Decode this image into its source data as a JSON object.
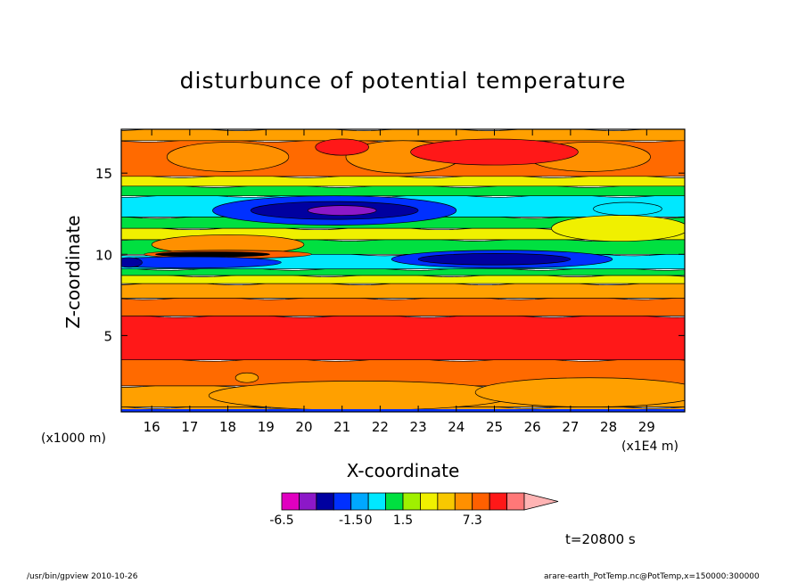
{
  "chart_data": {
    "type": "heatmap",
    "title": "disturbunce of potential temperature",
    "xlabel": "X-coordinate",
    "ylabel": "Z-coordinate",
    "x_unit_left": "(x1000 m)",
    "x_unit_right": "(x1E4 m)",
    "x_ticks": [
      16,
      17,
      18,
      19,
      20,
      21,
      22,
      23,
      24,
      25,
      26,
      27,
      28,
      29
    ],
    "y_ticks": [
      5,
      10,
      15
    ],
    "xlim": [
      15.2,
      30.0
    ],
    "ylim": [
      0.3,
      17.7
    ],
    "colorbar": {
      "labels": [
        "-6.5",
        "-1.5",
        "0",
        "1.5",
        "7.3"
      ],
      "colors": [
        "#e000c0",
        "#8c18c8",
        "#0000a0",
        "#0030ff",
        "#00a8ff",
        "#00e8ff",
        "#00e040",
        "#a0f000",
        "#f0f000",
        "#f8c800",
        "#ff9000",
        "#ff6000",
        "#ff1818",
        "#ff7878",
        "#ffb4b4"
      ]
    },
    "bands": [
      {
        "z": [
          0.3,
          0.6
        ],
        "color": "#ffa000"
      },
      {
        "z": [
          0.6,
          1.9
        ],
        "color": "#ffa000"
      },
      {
        "z": [
          1.9,
          3.5
        ],
        "color": "#ff6a00"
      },
      {
        "z": [
          3.5,
          6.2
        ],
        "color": "#ff1818"
      },
      {
        "z": [
          6.2,
          7.3
        ],
        "color": "#ff6a00"
      },
      {
        "z": [
          7.3,
          8.2
        ],
        "color": "#ffa000"
      },
      {
        "z": [
          8.2,
          8.7
        ],
        "color": "#f0f000"
      },
      {
        "z": [
          8.7,
          9.1
        ],
        "color": "#00e040"
      },
      {
        "z": [
          9.1,
          10.0
        ],
        "color": "#00e8ff"
      },
      {
        "z": [
          10.0,
          10.9
        ],
        "color": "#00e040"
      },
      {
        "z": [
          10.9,
          11.6
        ],
        "color": "#f0f000"
      },
      {
        "z": [
          11.6,
          12.3
        ],
        "color": "#00e040"
      },
      {
        "z": [
          12.3,
          13.6
        ],
        "color": "#00e8ff"
      },
      {
        "z": [
          13.6,
          14.2
        ],
        "color": "#00e040"
      },
      {
        "z": [
          14.2,
          14.8
        ],
        "color": "#f0f000"
      },
      {
        "z": [
          14.8,
          17.0
        ],
        "color": "#ff6a00"
      },
      {
        "z": [
          17.0,
          17.7
        ],
        "color": "#ffa000"
      }
    ],
    "features": [
      {
        "x": 18.0,
        "z": 16.0,
        "rx": 1.6,
        "rz": 0.9,
        "color": "#ff9000"
      },
      {
        "x": 22.6,
        "z": 16.0,
        "rx": 1.5,
        "rz": 1.0,
        "color": "#ff9000"
      },
      {
        "x": 27.5,
        "z": 16.0,
        "rx": 1.6,
        "rz": 0.9,
        "color": "#ff9000"
      },
      {
        "x": 21.0,
        "z": 16.6,
        "rx": 0.7,
        "rz": 0.5,
        "color": "#ff1818"
      },
      {
        "x": 25.0,
        "z": 16.3,
        "rx": 2.2,
        "rz": 0.8,
        "color": "#ff1818"
      },
      {
        "x": 20.8,
        "z": 12.7,
        "rx": 3.2,
        "rz": 0.9,
        "color": "#0030ff"
      },
      {
        "x": 20.8,
        "z": 12.7,
        "rx": 2.2,
        "rz": 0.55,
        "color": "#0000a0"
      },
      {
        "x": 21.0,
        "z": 12.7,
        "rx": 0.9,
        "rz": 0.3,
        "color": "#8c18c8"
      },
      {
        "x": 28.5,
        "z": 12.8,
        "rx": 0.9,
        "rz": 0.4,
        "color": "#00e8ff"
      },
      {
        "x": 28.3,
        "z": 11.6,
        "rx": 1.8,
        "rz": 0.8,
        "color": "#f0f000"
      },
      {
        "x": 18.0,
        "z": 10.6,
        "rx": 2.0,
        "rz": 0.6,
        "color": "#ff9000"
      },
      {
        "x": 18.0,
        "z": 10.0,
        "rx": 2.2,
        "rz": 0.25,
        "color": "#ff6000"
      },
      {
        "x": 17.6,
        "z": 10.0,
        "rx": 1.5,
        "rz": 0.15,
        "color": "#000000"
      },
      {
        "x": 17.0,
        "z": 9.5,
        "rx": 2.4,
        "rz": 0.35,
        "color": "#0030ff"
      },
      {
        "x": 25.2,
        "z": 9.7,
        "rx": 2.9,
        "rz": 0.55,
        "color": "#0030ff"
      },
      {
        "x": 25.0,
        "z": 9.7,
        "rx": 2.0,
        "rz": 0.35,
        "color": "#0000a0"
      },
      {
        "x": 15.4,
        "z": 9.5,
        "rx": 0.35,
        "rz": 0.3,
        "color": "#0000a0"
      },
      {
        "x": 21.5,
        "z": 1.3,
        "rx": 4.0,
        "rz": 0.9,
        "color": "#ffa000"
      },
      {
        "x": 27.5,
        "z": 1.5,
        "rx": 3.0,
        "rz": 0.9,
        "color": "#ffa000"
      },
      {
        "x": 18.5,
        "z": 2.4,
        "rx": 0.3,
        "rz": 0.3,
        "color": "#ffa000"
      }
    ]
  },
  "info": {
    "time_label": "t=20800 s",
    "footer_left": "/usr/bin/gpview   2010-10-26",
    "footer_right": "arare-earth_PotTemp.nc@PotTemp,x=150000:300000"
  }
}
